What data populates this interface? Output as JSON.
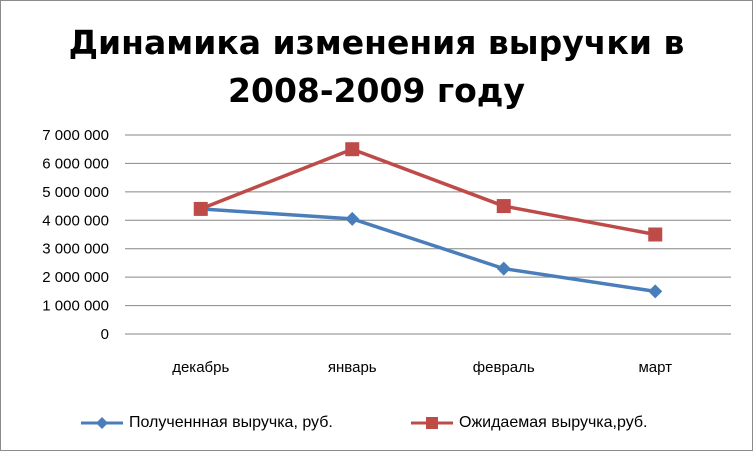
{
  "chart_data": {
    "type": "line",
    "title_lines": [
      "Динамика изменения выручки в",
      "2008-2009 году"
    ],
    "categories": [
      "декабрь",
      "январь",
      "февраль",
      "март"
    ],
    "y_tick_labels": [
      "0",
      "1 000 000",
      "2 000 000",
      "3 000 000",
      "4 000 000",
      "5 000 000",
      "6 000 000",
      "7 000 000"
    ],
    "ylim": [
      0,
      7000000
    ],
    "grid": true,
    "legend_position": "bottom",
    "series": [
      {
        "name": "Полученнная выручка, руб.",
        "values": [
          4400000,
          4050000,
          2300000,
          1500000
        ],
        "color": "#4a7ebb",
        "marker": "diamond"
      },
      {
        "name": "Ожидаемая выручка,руб.",
        "values": [
          4400000,
          6500000,
          4500000,
          3500000
        ],
        "color": "#be4b48",
        "marker": "square"
      }
    ]
  }
}
